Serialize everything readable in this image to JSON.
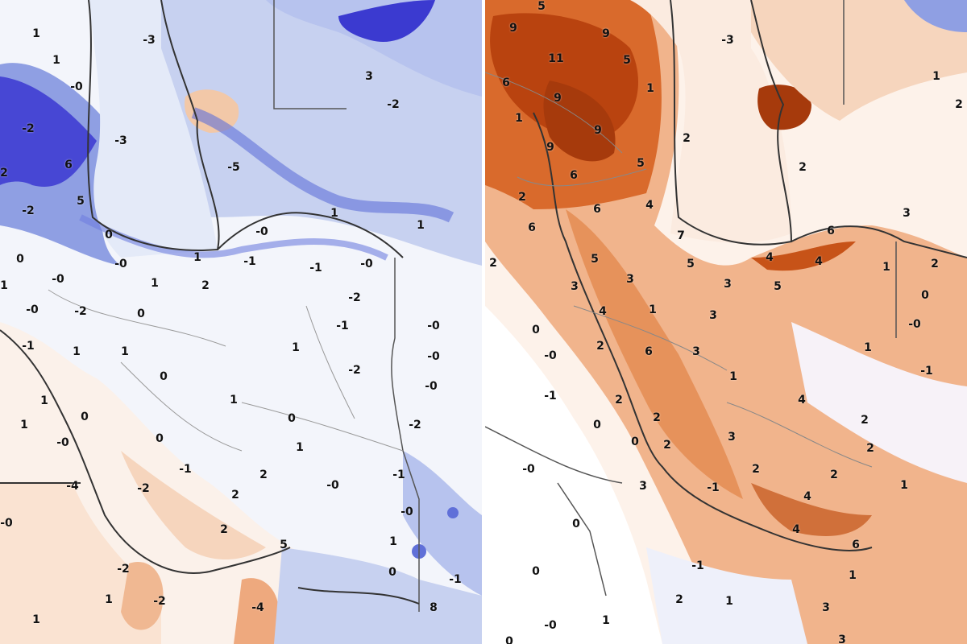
{
  "colors": {
    "cold_strong": "#3b3ad0",
    "cold_mid": "#8f9fe3",
    "cold_light": "#dce3f6",
    "neutral": "#ffffff",
    "warm_light": "#f6d5bd",
    "warm_mid": "#e38a4f",
    "warm_strong": "#b9430f",
    "border": "#777777",
    "coast": "#333333"
  },
  "left_panel": {
    "labels": [
      "1",
      "-3",
      "1",
      "-0",
      "3",
      "-2",
      "-2",
      "-3",
      "6",
      "2",
      "-5",
      "5",
      "-2",
      "1",
      "1",
      "0",
      "-0",
      "0",
      "1",
      "-1",
      "-0",
      "-0",
      "-1",
      "-0",
      "1",
      "1",
      "2",
      "-2",
      "-0",
      "-2",
      "0",
      "-1",
      "-0",
      "-1",
      "1",
      "1",
      "1",
      "-0",
      "-2",
      "0",
      "-0",
      "1",
      "1",
      "1",
      "0",
      "0",
      "-2",
      "-0",
      "0",
      "1",
      "-1",
      "2",
      "-1",
      "-4",
      "-2",
      "-0",
      "2",
      "-0",
      "-0",
      "2",
      "5",
      "1",
      "-2",
      "0",
      "-1",
      "1",
      "-2",
      "-4",
      "8",
      "1"
    ]
  },
  "right_panel": {
    "labels": [
      "5",
      "9",
      "9",
      "11",
      "5",
      "-3",
      "6",
      "9",
      "1",
      "1",
      "2",
      "1",
      "9",
      "2",
      "9",
      "5",
      "6",
      "2",
      "2",
      "6",
      "4",
      "3",
      "6",
      "6",
      "7",
      "5",
      "4",
      "4",
      "2",
      "5",
      "1",
      "2",
      "3",
      "3",
      "3",
      "5",
      "0",
      "4",
      "1",
      "3",
      "0",
      "-0",
      "2",
      "-0",
      "6",
      "3",
      "1",
      "-1",
      "1",
      "-1",
      "2",
      "4",
      "2",
      "2",
      "0",
      "2",
      "3",
      "0",
      "2",
      "-0",
      "2",
      "2",
      "3",
      "-1",
      "1",
      "4",
      "0",
      "4",
      "6",
      "-1",
      "0",
      "1",
      "2",
      "1",
      "3",
      "-0",
      "1",
      "0",
      "3"
    ]
  }
}
